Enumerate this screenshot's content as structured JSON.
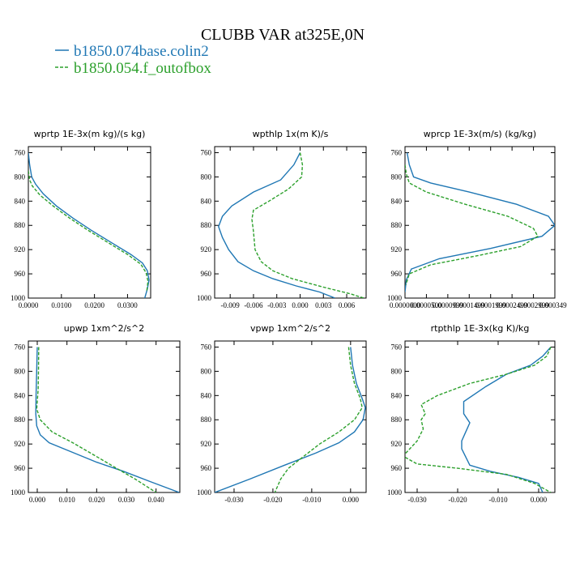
{
  "figure": {
    "title": "CLUBB VAR at325E,0N",
    "legend": [
      {
        "label": "b1850.074base.colin2",
        "color": "#1f77b4",
        "dash": "solid"
      },
      {
        "label": "b1850.054.f_outofbox",
        "color": "#2ca02c",
        "dash": "dashed"
      }
    ]
  },
  "chart_data": [
    {
      "type": "line",
      "title": "wprtp   1E-3x(m kg)/(s kg)",
      "xlim": [
        0.0,
        0.037
      ],
      "ylim": [
        1000,
        750
      ],
      "xticks": [
        0.0,
        0.01,
        0.02,
        0.03
      ],
      "xtick_labels": [
        "0.0000",
        "0.0100",
        "0.0200",
        "0.0300"
      ],
      "yticks": [
        760,
        800,
        840,
        880,
        920,
        960,
        1000
      ],
      "series": [
        {
          "name": "b1850.074base.colin2",
          "color": "#1f77b4",
          "dash": "solid",
          "x": [
            0.0,
            0.0004,
            0.001,
            0.0022,
            0.0045,
            0.0085,
            0.0135,
            0.019,
            0.025,
            0.031,
            0.0345,
            0.036,
            0.0365,
            0.036,
            0.0352
          ],
          "y": [
            760,
            780,
            800,
            812,
            828,
            848,
            868,
            888,
            908,
            928,
            942,
            955,
            970,
            985,
            1000
          ]
        },
        {
          "name": "b1850.054.f_outofbox",
          "color": "#2ca02c",
          "dash": "dashed",
          "x": [
            0.0,
            0.0004,
            0.0012,
            0.0035,
            0.0075,
            0.0125,
            0.018,
            0.024,
            0.03,
            0.034,
            0.0356,
            0.0362,
            0.0358
          ],
          "y": [
            790,
            805,
            815,
            830,
            848,
            868,
            888,
            908,
            928,
            944,
            958,
            972,
            990
          ]
        }
      ]
    },
    {
      "type": "line",
      "title": "wpthlp   1x(m K)/s",
      "xlim": [
        -0.011,
        0.0085
      ],
      "ylim": [
        1000,
        750
      ],
      "xticks": [
        -0.009,
        -0.006,
        -0.003,
        0.0,
        0.003,
        0.006
      ],
      "xtick_labels": [
        "-0.009",
        "-0.006",
        "-0.003",
        "0.000",
        "0.003",
        "0.006"
      ],
      "yticks": [
        760,
        800,
        840,
        880,
        920,
        960,
        1000
      ],
      "series": [
        {
          "name": "b1850.074base.colin2",
          "color": "#1f77b4",
          "dash": "solid",
          "x": [
            0.0,
            -0.0008,
            -0.0025,
            -0.006,
            -0.0088,
            -0.01,
            -0.0105,
            -0.01,
            -0.0092,
            -0.008,
            -0.006,
            -0.0035,
            -0.0005,
            0.0025,
            0.0045
          ],
          "y": [
            760,
            780,
            805,
            825,
            848,
            865,
            882,
            900,
            920,
            940,
            955,
            968,
            980,
            990,
            1000
          ]
        },
        {
          "name": "b1850.054.f_outofbox",
          "color": "#2ca02c",
          "dash": "dashed",
          "x": [
            0.0,
            0.0003,
            0.0002,
            -0.0015,
            -0.004,
            -0.006,
            -0.0062,
            -0.006,
            -0.0058,
            -0.005,
            -0.0035,
            -0.001,
            0.003,
            0.0065,
            0.0082
          ],
          "y": [
            760,
            780,
            800,
            820,
            840,
            855,
            870,
            890,
            920,
            940,
            955,
            968,
            982,
            993,
            1000
          ]
        }
      ]
    },
    {
      "type": "line",
      "title": "wprcp   1E-3x(m/s) (kg/kg)",
      "xlim": [
        0.0,
        0.00035
      ],
      "ylim": [
        1000,
        750
      ],
      "xticks": [
        0.0,
        5e-05,
        0.0001,
        0.00015,
        0.0002,
        0.00025,
        0.0003,
        0.00035
      ],
      "xtick_labels": [
        "0.0000000",
        "0.0000500",
        "0.0000999",
        "0.0001499",
        "0.0001999",
        "0.0002499",
        "0.0002999",
        "0.0003499"
      ],
      "yticks": [
        760,
        800,
        840,
        880,
        920,
        960,
        1000
      ],
      "series": [
        {
          "name": "b1850.074base.colin2",
          "color": "#1f77b4",
          "dash": "solid",
          "x": [
            5e-06,
            1e-05,
            2e-05,
            6e-05,
            0.00015,
            0.00026,
            0.000335,
            0.00035,
            0.00032,
            0.0002,
            8e-05,
            1.5e-05,
            3e-06,
            0.0
          ],
          "y": [
            760,
            780,
            800,
            810,
            825,
            845,
            865,
            880,
            898,
            918,
            935,
            952,
            970,
            990
          ]
        },
        {
          "name": "b1850.054.f_outofbox",
          "color": "#2ca02c",
          "dash": "dashed",
          "x": [
            0.0,
            3e-06,
            1e-05,
            5e-05,
            0.00014,
            0.00024,
            0.0003,
            0.00031,
            0.00027,
            0.00017,
            6e-05,
            1e-05,
            2e-06
          ],
          "y": [
            780,
            795,
            810,
            825,
            845,
            865,
            885,
            898,
            915,
            930,
            945,
            960,
            978
          ]
        }
      ]
    },
    {
      "type": "line",
      "title": "upwp   1xm^2/s^2",
      "xlim": [
        -0.003,
        0.048
      ],
      "ylim": [
        1000,
        750
      ],
      "xticks": [
        0.0,
        0.01,
        0.02,
        0.03,
        0.04
      ],
      "xtick_labels": [
        "0.000",
        "0.010",
        "0.020",
        "0.030",
        "0.040"
      ],
      "yticks": [
        760,
        800,
        840,
        880,
        920,
        960,
        1000
      ],
      "series": [
        {
          "name": "b1850.074base.colin2",
          "color": "#1f77b4",
          "dash": "solid",
          "x": [
            0.0,
            -0.0002,
            -0.0004,
            -0.0005,
            -0.0002,
            0.001,
            0.004,
            0.011,
            0.02,
            0.029,
            0.038,
            0.0478
          ],
          "y": [
            760,
            800,
            840,
            870,
            890,
            905,
            918,
            932,
            950,
            965,
            982,
            1000
          ]
        },
        {
          "name": "b1850.054.f_outofbox",
          "color": "#2ca02c",
          "dash": "dashed",
          "x": [
            0.0005,
            0.0004,
            0.0003,
            0.0,
            -0.0002,
            0.001,
            0.005,
            0.012,
            0.019,
            0.026,
            0.033,
            0.04
          ],
          "y": [
            760,
            800,
            830,
            850,
            862,
            880,
            900,
            918,
            938,
            958,
            978,
            1000
          ]
        }
      ]
    },
    {
      "type": "line",
      "title": "vpwp   1xm^2/s^2",
      "xlim": [
        -0.035,
        0.004
      ],
      "ylim": [
        1000,
        750
      ],
      "xticks": [
        -0.03,
        -0.02,
        -0.01,
        0.0
      ],
      "xtick_labels": [
        "-0.030",
        "-0.020",
        "-0.010",
        "0.000"
      ],
      "yticks": [
        760,
        800,
        840,
        880,
        920,
        960,
        1000
      ],
      "series": [
        {
          "name": "b1850.074base.colin2",
          "color": "#1f77b4",
          "dash": "solid",
          "x": [
            0.0,
            0.0005,
            0.0015,
            0.003,
            0.0038,
            0.0032,
            0.001,
            -0.003,
            -0.009,
            -0.017,
            -0.026,
            -0.035
          ],
          "y": [
            760,
            790,
            820,
            845,
            860,
            880,
            900,
            918,
            935,
            955,
            978,
            1000
          ]
        },
        {
          "name": "b1850.054.f_outofbox",
          "color": "#2ca02c",
          "dash": "dashed",
          "x": [
            -0.0005,
            0.0,
            0.001,
            0.0025,
            0.003,
            0.001,
            -0.003,
            -0.008,
            -0.012,
            -0.016,
            -0.018,
            -0.0195
          ],
          "y": [
            760,
            790,
            820,
            845,
            860,
            880,
            900,
            920,
            940,
            960,
            978,
            1000
          ]
        }
      ]
    },
    {
      "type": "line",
      "title": "rtpthlp   1E-3x(kg K)/kg",
      "xlim": [
        -0.033,
        0.004
      ],
      "ylim": [
        1000,
        750
      ],
      "xticks": [
        -0.03,
        -0.02,
        -0.01,
        0.0
      ],
      "xtick_labels": [
        "-0.030",
        "-0.020",
        "-0.010",
        "0.000"
      ],
      "yticks": [
        760,
        800,
        840,
        880,
        920,
        960,
        1000
      ],
      "series": [
        {
          "name": "b1850.074base.colin2",
          "color": "#1f77b4",
          "dash": "solid",
          "x": [
            0.003,
            0.001,
            -0.002,
            -0.008,
            -0.013,
            -0.0185,
            -0.0185,
            -0.017,
            -0.018,
            -0.019,
            -0.019,
            -0.017,
            -0.012,
            -0.005,
            0.0,
            0.001
          ],
          "y": [
            760,
            775,
            790,
            805,
            825,
            850,
            870,
            885,
            900,
            915,
            928,
            955,
            965,
            975,
            985,
            1000
          ]
        },
        {
          "name": "b1850.054.f_outofbox",
          "color": "#2ca02c",
          "dash": "dashed",
          "x": [
            0.003,
            0.002,
            -0.001,
            -0.008,
            -0.017,
            -0.025,
            -0.029,
            -0.028,
            -0.029,
            -0.0285,
            -0.03,
            -0.0335,
            -0.03,
            -0.02,
            -0.008,
            -0.001,
            0.003
          ],
          "y": [
            760,
            775,
            790,
            805,
            820,
            840,
            855,
            870,
            880,
            895,
            915,
            940,
            953,
            960,
            970,
            985,
            1000
          ]
        }
      ]
    }
  ]
}
